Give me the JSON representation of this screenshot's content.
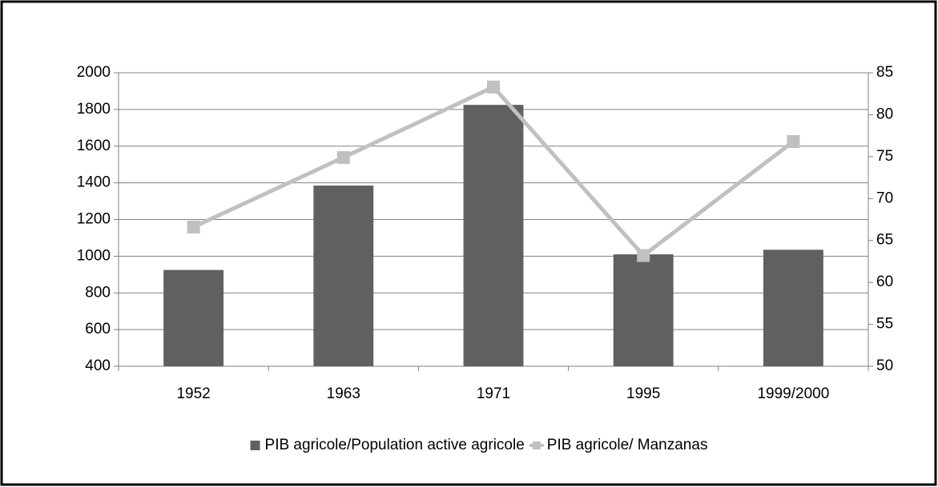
{
  "chart_data": {
    "type": "bar",
    "categories": [
      "1952",
      "1963",
      "1971",
      "1995",
      "1999/2000"
    ],
    "series": [
      {
        "name": "PIB agricole/Population active agricole",
        "type": "bar",
        "color": "#606060",
        "values": [
          925,
          1385,
          1825,
          1010,
          1035
        ]
      },
      {
        "name": "PIB agricole/ Manzanas",
        "type": "line",
        "axis": "y2",
        "color": "#c0c0c0",
        "values": [
          66.6,
          74.9,
          83.3,
          63.2,
          76.8
        ]
      }
    ],
    "ylim": [
      400,
      2000
    ],
    "yticks": [
      400,
      600,
      800,
      1000,
      1200,
      1400,
      1600,
      1800,
      2000
    ],
    "y2lim": [
      50,
      85
    ],
    "y2ticks": [
      50,
      55,
      60,
      65,
      70,
      75,
      80,
      85
    ],
    "grid": true,
    "legend": "bottom"
  }
}
